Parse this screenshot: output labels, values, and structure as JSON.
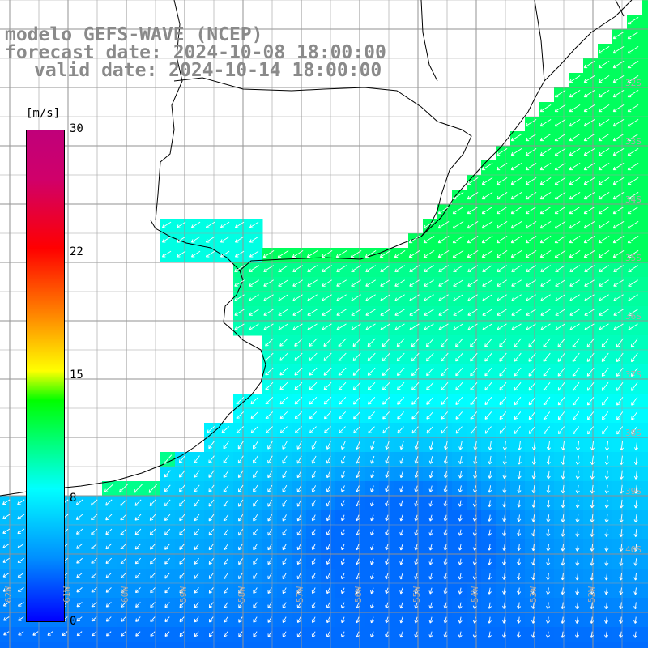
{
  "title": {
    "line1": "modelo GEFS-WAVE (NCEP)",
    "line2": "forecast date: 2024-10-08 18:00:00",
    "line3": "valid date: 2024-10-14 18:00:00"
  },
  "colorbar": {
    "unit": "[m/s]",
    "ticks": [
      "30",
      "22",
      "15",
      "8",
      "0"
    ],
    "tick_values": [
      30,
      22,
      15,
      8,
      0
    ],
    "range": [
      0,
      30
    ],
    "colors": [
      "#0000ff",
      "#0090ff",
      "#00ffff",
      "#00ff00",
      "#ffff00",
      "#ff8000",
      "#ff0000",
      "#c0007a"
    ]
  },
  "map": {
    "land_color": "#ffffff",
    "grid_color": "#808080",
    "coast_color": "#000000",
    "arrow_color": "#ffffff",
    "lat_labels": [
      "32S",
      "33S",
      "34S",
      "35S",
      "36S",
      "37S",
      "38S",
      "39S",
      "40S"
    ],
    "lon_labels": [
      "62W",
      "61W",
      "60W",
      "59W",
      "58W",
      "57W",
      "56W",
      "55W",
      "54W",
      "53W",
      "52W",
      "51W"
    ],
    "wind_direction": "from northeast",
    "speed_field_description_regions": {
      "north_shelf": 11,
      "river_plate": 10,
      "central_offshore": 8,
      "southeast_basin": 4,
      "southwest": 6
    }
  }
}
